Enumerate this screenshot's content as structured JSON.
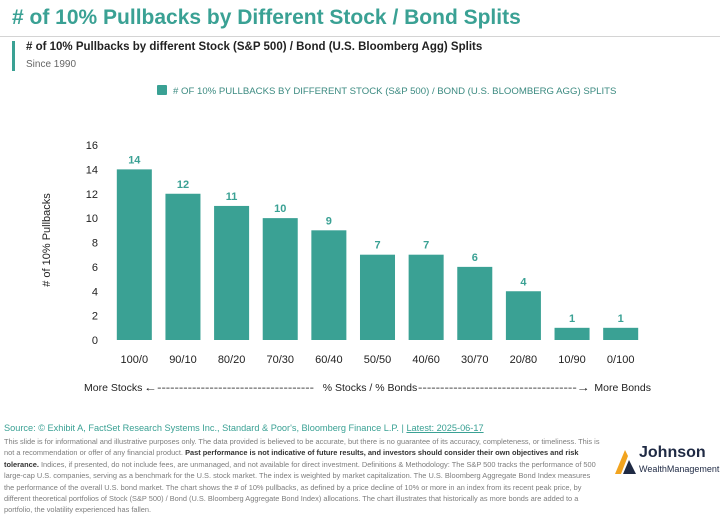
{
  "header": {
    "title": "# of 10% Pullbacks by Different Stock / Bond Splits",
    "subtitle": "# of 10% Pullbacks by different Stock (S&P 500) / Bond (U.S. Bloomberg Agg) Splits",
    "note": "Since 1990"
  },
  "colors": {
    "accent": "#3aa194",
    "bar": "#3aa194",
    "text": "#222222",
    "grid": "#d4d4d4",
    "logo_dark": "#1f2a44",
    "logo_orange": "#f2a41f"
  },
  "chart_data": {
    "type": "bar",
    "legend": "# OF 10% PULLBACKS BY DIFFERENT STOCK (S&P 500) / BOND (U.S. BLOOMBERG AGG) SPLITS",
    "legend_position": "top",
    "categories": [
      "100/0",
      "90/10",
      "80/20",
      "70/30",
      "60/40",
      "50/50",
      "40/60",
      "30/70",
      "20/80",
      "10/90",
      "0/100"
    ],
    "series": [
      {
        "name": "# OF 10% PULLBACKS BY DIFFERENT STOCK (S&P 500) / BOND (U.S. BLOOMBERG AGG) SPLITS",
        "values": [
          14,
          12,
          11,
          10,
          9,
          7,
          7,
          6,
          4,
          1,
          1
        ]
      }
    ],
    "ylabel": "# of 10% Pullbacks",
    "xlabel_left": "More Stocks",
    "xlabel_center": "% Stocks / % Bonds",
    "xlabel_right": "More Bonds",
    "x_arrow_left": "←------------------------------------",
    "x_arrow_right": "------------------------------------→",
    "ylim": [
      0,
      16
    ],
    "yticks": [
      0,
      2,
      4,
      6,
      8,
      10,
      12,
      14,
      16
    ],
    "grid": false,
    "data_labels": true
  },
  "footer": {
    "source": "Source: © Exhibit A, FactSet Research Systems Inc., Standard & Poor's, Bloomberg Finance L.P. |",
    "latest": "Latest: 2025-06-17",
    "disclaimer_1": "This slide is for informational and illustrative purposes only. The data provided is believed to be accurate, but there is no guarantee of its accuracy, completeness, or timeliness. This is not a recommendation or offer of any financial product.",
    "disclaimer_bold": "Past performance is not indicative of future results, and investors should consider their own objectives and risk tolerance.",
    "disclaimer_2": "Indices, if presented, do not include fees, are unmanaged, and not available for direct investment. Definitions & Methodology: The S&P 500 tracks the performance of 500 large-cap U.S. companies, serving as a benchmark for the U.S. stock market. The index is weighted by market capitalization. The U.S. Bloomberg Aggregate Bond Index measures the performance of the overall U.S. bond market. The chart shows the # of 10% pullbacks, as defined by a price decline of 10% or more in an index from its recent peak price, by different theoretical portfolios of Stock (S&P 500) / Bond (U.S. Bloomberg Aggregate Bond Index) allocations. The chart illustrates that historically as more bonds are added to a portfolio, the volatility experienced has fallen."
  },
  "logo": {
    "name": "Johnson",
    "sub": "WealthManagement",
    "icon": "johnson-logo-mark-icon"
  }
}
